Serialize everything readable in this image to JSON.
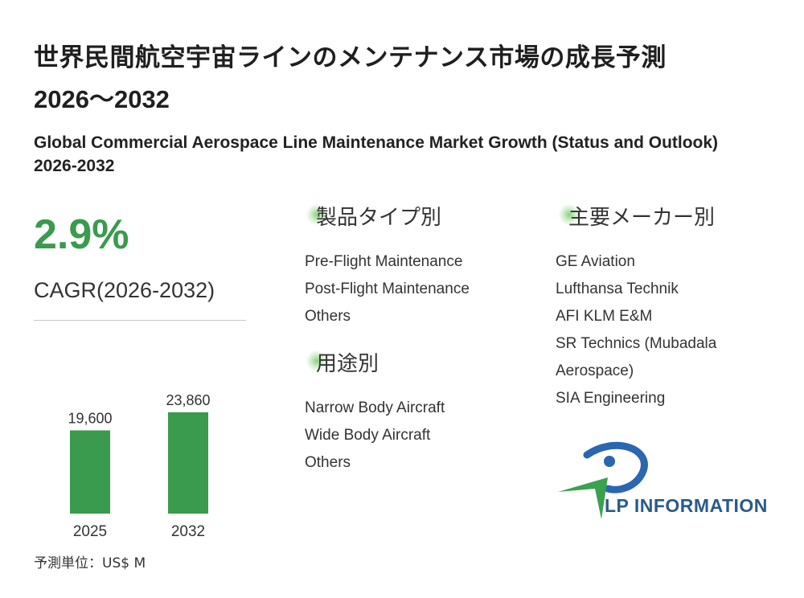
{
  "title": {
    "jp": "世界民間航空宇宙ラインのメンテナンス市場の成長予測",
    "years": "2026～2032",
    "en": "Global Commercial Aerospace Line Maintenance Market Growth (Status and Outlook) 2026-2032"
  },
  "cagr": {
    "value": "2.9%",
    "label": "CAGR(2026-2032)"
  },
  "unit_label": "予測単位：US$ M",
  "colors": {
    "accent": "#3a9a4e",
    "bar": "#3a9a4e",
    "logo_text": "#2a5a8a"
  },
  "sections": {
    "product_type": {
      "heading": "製品タイプ別",
      "items": [
        "Pre-Flight Maintenance",
        "Post-Flight Maintenance",
        "Others"
      ]
    },
    "application": {
      "heading": "用途別",
      "items": [
        "Narrow Body Aircraft",
        "Wide Body Aircraft",
        "Others"
      ]
    },
    "manufacturers": {
      "heading": "主要メーカー別",
      "items": [
        "GE Aviation",
        "Lufthansa Technik",
        "AFI KLM E&M",
        "SR Technics (Mubadala",
        "Aerospace)",
        "SIA Engineering"
      ]
    }
  },
  "logo": {
    "text": "LP INFORMATION"
  },
  "chart_data": {
    "type": "bar",
    "categories": [
      "2025",
      "2032"
    ],
    "values": [
      19600,
      23860
    ],
    "value_labels": [
      "19,600",
      "23,860"
    ],
    "ylim": [
      0,
      26500
    ],
    "grid": false
  }
}
